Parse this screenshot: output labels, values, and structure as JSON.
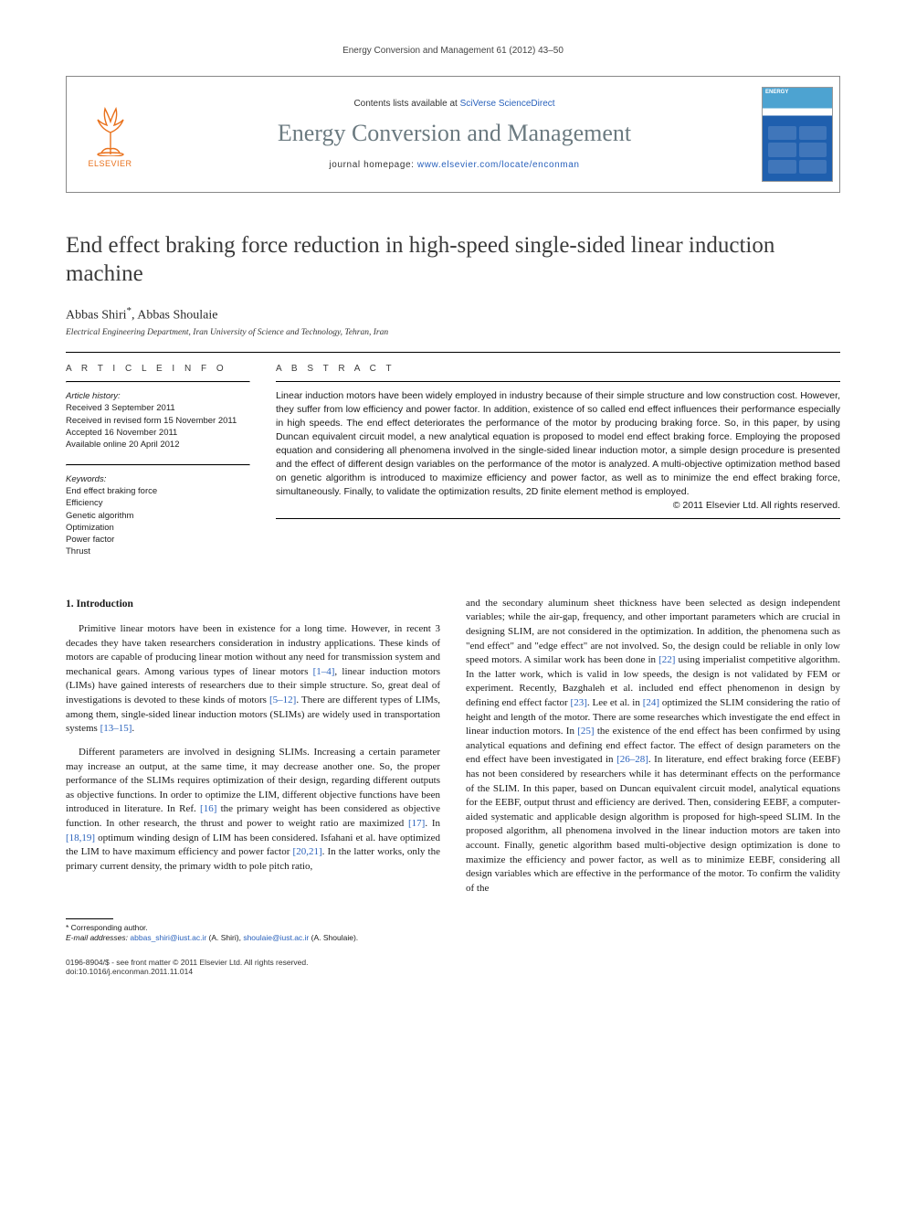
{
  "running_head": "Energy Conversion and Management 61 (2012) 43–50",
  "masthead": {
    "publisher": "ELSEVIER",
    "contents_prefix": "Contents lists available at ",
    "contents_link": "SciVerse ScienceDirect",
    "journal": "Energy Conversion and Management",
    "homepage_prefix": "journal homepage: ",
    "homepage_url": "www.elsevier.com/locate/enconman",
    "cover_title": "ENERGY"
  },
  "title": "End effect braking force reduction in high-speed single-sided linear induction machine",
  "authors_html": "Abbas Shiri *, Abbas Shoulaie",
  "author1": "Abbas Shiri",
  "corr_mark": "*",
  "author2": "Abbas Shoulaie",
  "affiliation": "Electrical Engineering Department, Iran University of Science and Technology, Tehran, Iran",
  "info_head": "A R T I C L E   I N F O",
  "abs_head": "A B S T R A C T",
  "history": {
    "label": "Article history:",
    "received": "Received 3 September 2011",
    "revised": "Received in revised form 15 November 2011",
    "accepted": "Accepted 16 November 2011",
    "online": "Available online 20 April 2012"
  },
  "keywords": {
    "label": "Keywords:",
    "items": [
      "End effect braking force",
      "Efficiency",
      "Genetic algorithm",
      "Optimization",
      "Power factor",
      "Thrust"
    ]
  },
  "abstract": "Linear induction motors have been widely employed in industry because of their simple structure and low construction cost. However, they suffer from low efficiency and power factor. In addition, existence of so called end effect influences their performance especially in high speeds. The end effect deteriorates the performance of the motor by producing braking force. So, in this paper, by using Duncan equivalent circuit model, a new analytical equation is proposed to model end effect braking force. Employing the proposed equation and considering all phenomena involved in the single-sided linear induction motor, a simple design procedure is presented and the effect of different design variables on the performance of the motor is analyzed. A multi-objective optimization method based on genetic algorithm is introduced to maximize efficiency and power factor, as well as to minimize the end effect braking force, simultaneously. Finally, to validate the optimization results, 2D finite element method is employed.",
  "copyright": "© 2011 Elsevier Ltd. All rights reserved.",
  "section1": {
    "heading": "1. Introduction",
    "p1": "Primitive linear motors have been in existence for a long time. However, in recent 3 decades they have taken researchers consideration in industry applications. These kinds of motors are capable of producing linear motion without any need for transmission system and mechanical gears. Among various types of linear motors [1–4], linear induction motors (LIMs) have gained interests of researchers due to their simple structure. So, great deal of investigations is devoted to these kinds of motors [5–12]. There are different types of LIMs, among them, single-sided linear induction motors (SLIMs) are widely used in transportation systems [13–15].",
    "p2": "Different parameters are involved in designing SLIMs. Increasing a certain parameter may increase an output, at the same time, it may decrease another one. So, the proper performance of the SLIMs requires optimization of their design, regarding different outputs as objective functions. In order to optimize the LIM, different objective functions have been introduced in literature. In Ref. [16] the primary weight has been considered as objective function. In other research, the thrust and power to weight ratio are maximized [17]. In [18,19] optimum winding design of LIM has been considered. Isfahani et al. have optimized the LIM to have maximum efficiency and power factor [20,21]. In the latter works, only the primary current density, the primary width to pole pitch ratio,",
    "p3": "and the secondary aluminum sheet thickness have been selected as design independent variables; while the air-gap, frequency, and other important parameters which are crucial in designing SLIM, are not considered in the optimization. In addition, the phenomena such as \"end effect\" and \"edge effect\" are not involved. So, the design could be reliable in only low speed motors. A similar work has been done in [22] using imperialist competitive algorithm. In the latter work, which is valid in low speeds, the design is not validated by FEM or experiment. Recently, Bazghaleh et al. included end effect phenomenon in design by defining end effect factor [23]. Lee et al. in [24] optimized the SLIM considering the ratio of height and length of the motor. There are some researches which investigate the end effect in linear induction motors. In [25] the existence of the end effect has been confirmed by using analytical equations and defining end effect factor. The effect of design parameters on the end effect have been investigated in [26–28]. In literature, end effect braking force (EEBF) has not been considered by researchers while it has determinant effects on the performance of the SLIM. In this paper, based on Duncan equivalent circuit model, analytical equations for the EEBF, output thrust and efficiency are derived. Then, considering EEBF, a computer-aided systematic and applicable design algorithm is proposed for high-speed SLIM. In the proposed algorithm, all phenomena involved in the linear induction motors are taken into account. Finally, genetic algorithm based multi-objective design optimization is done to maximize the efficiency and power factor, as well as to minimize EEBF, considering all design variables which are effective in the performance of the motor. To confirm the validity of the"
  },
  "footnote": {
    "corr": "* Corresponding author.",
    "email_label": "E-mail addresses:",
    "e1": "abbas_shiri@iust.ac.ir",
    "n1": "(A. Shiri),",
    "e2": "shoulaie@iust.ac.ir",
    "n2": "(A. Shoulaie)."
  },
  "bottom": {
    "issn": "0196-8904/$ - see front matter © 2011 Elsevier Ltd. All rights reserved.",
    "doi": "doi:10.1016/j.enconman.2011.11.014"
  },
  "colors": {
    "link": "#2a62bc",
    "elsevier_orange": "#e9711c",
    "journal_grey": "#6b7a80"
  }
}
